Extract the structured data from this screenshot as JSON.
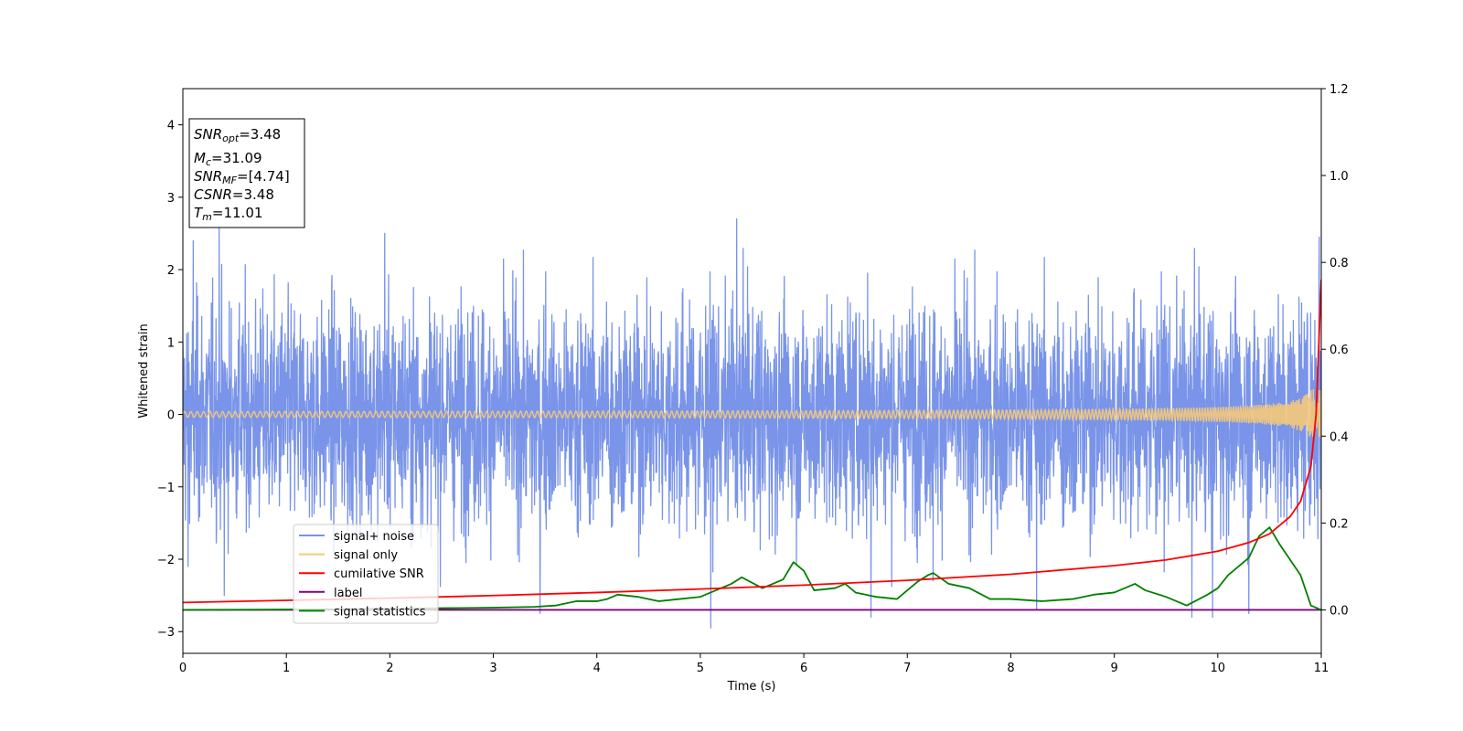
{
  "chart_data": {
    "type": "line",
    "xlabel": "Time (s)",
    "ylabel": "Whitened strain",
    "xlim": [
      0,
      11
    ],
    "ylim_left": [
      -3.3,
      4.5
    ],
    "ylim_right": [
      -0.1,
      1.2
    ],
    "x_ticks": [
      0,
      1,
      2,
      3,
      4,
      5,
      6,
      7,
      8,
      9,
      10,
      11
    ],
    "y_ticks_left": [
      -3,
      -2,
      -1,
      0,
      1,
      2,
      3,
      4
    ],
    "y_ticks_right": [
      0.0,
      0.2,
      0.4,
      0.6,
      0.8,
      1.0,
      1.2
    ],
    "legend_position": "lower-left",
    "info_box": {
      "snr_opt": {
        "sym": "SNR",
        "sub": "opt",
        "value": "=3.48"
      },
      "mc": {
        "sym": "M",
        "sub": "c",
        "value": "=31.09"
      },
      "snr_mf": {
        "sym": "SNR",
        "sub": "MF",
        "value": "=[4.74]"
      },
      "csnr": {
        "sym": "CSNR",
        "sub": "",
        "value": "=3.48"
      },
      "tm": {
        "sym": "T",
        "sub": "m",
        "value": "=11.01"
      }
    },
    "series": [
      {
        "name": "signal+ noise",
        "color": "#7994e8",
        "axis": "left",
        "description": "whitened noise, roughly +/-1.5 envelope with spikes to about 2.7 and -2.95",
        "envelope_max": 2.7,
        "envelope_min": -2.95,
        "spikes": [
          [
            0.05,
            -2.1
          ],
          [
            0.1,
            2.4
          ],
          [
            0.35,
            2.6
          ],
          [
            0.4,
            -2.5
          ],
          [
            1.95,
            2.5
          ],
          [
            3.45,
            -2.75
          ],
          [
            5.1,
            -2.95
          ],
          [
            5.35,
            2.7
          ],
          [
            6.65,
            -2.8
          ],
          [
            7.25,
            -2.3
          ],
          [
            8.25,
            -2.7
          ],
          [
            9.75,
            -2.8
          ],
          [
            9.95,
            -2.8
          ],
          [
            10.3,
            -2.75
          ],
          [
            10.98,
            2.45
          ]
        ]
      },
      {
        "name": "signal only",
        "color": "#f5c97a",
        "axis": "left",
        "description": "chirp, amplitude near 0 growing to about 0.35 at t=11"
      },
      {
        "name": "cumilative SNR",
        "color": "#ff0000",
        "axis": "right",
        "x": [
          0,
          1,
          2,
          3,
          4,
          5,
          6,
          7,
          8,
          9,
          9.5,
          10,
          10.3,
          10.5,
          10.7,
          10.8,
          10.9,
          10.95,
          11
        ],
        "y": [
          0.017,
          0.022,
          0.027,
          0.033,
          0.04,
          0.048,
          0.057,
          0.068,
          0.082,
          0.102,
          0.115,
          0.135,
          0.155,
          0.175,
          0.215,
          0.25,
          0.33,
          0.45,
          0.76
        ]
      },
      {
        "name": "label",
        "color": "#800080",
        "axis": "right",
        "x": [
          0,
          11
        ],
        "y": [
          0,
          0
        ]
      },
      {
        "name": "signal statistics",
        "color": "#008000",
        "axis": "right",
        "x": [
          0,
          0.5,
          1.0,
          1.5,
          2.0,
          2.5,
          3.0,
          3.4,
          3.6,
          3.8,
          4.0,
          4.1,
          4.2,
          4.4,
          4.6,
          4.8,
          5.0,
          5.2,
          5.3,
          5.4,
          5.6,
          5.8,
          5.9,
          6.0,
          6.1,
          6.3,
          6.4,
          6.5,
          6.7,
          6.9,
          7.1,
          7.2,
          7.25,
          7.4,
          7.6,
          7.8,
          8.0,
          8.3,
          8.6,
          8.8,
          9.0,
          9.2,
          9.3,
          9.5,
          9.7,
          9.9,
          10.0,
          10.1,
          10.2,
          10.3,
          10.4,
          10.5,
          10.6,
          10.8,
          10.9,
          11.0
        ],
        "y": [
          0.0,
          0.0005,
          0.001,
          0.002,
          0.003,
          0.004,
          0.005,
          0.007,
          0.01,
          0.02,
          0.02,
          0.025,
          0.035,
          0.03,
          0.02,
          0.025,
          0.03,
          0.05,
          0.06,
          0.075,
          0.05,
          0.07,
          0.11,
          0.09,
          0.045,
          0.05,
          0.06,
          0.04,
          0.03,
          0.025,
          0.065,
          0.08,
          0.085,
          0.06,
          0.05,
          0.025,
          0.025,
          0.02,
          0.025,
          0.035,
          0.04,
          0.06,
          0.045,
          0.03,
          0.01,
          0.035,
          0.05,
          0.08,
          0.1,
          0.12,
          0.17,
          0.19,
          0.15,
          0.08,
          0.01,
          0.0
        ]
      }
    ]
  }
}
